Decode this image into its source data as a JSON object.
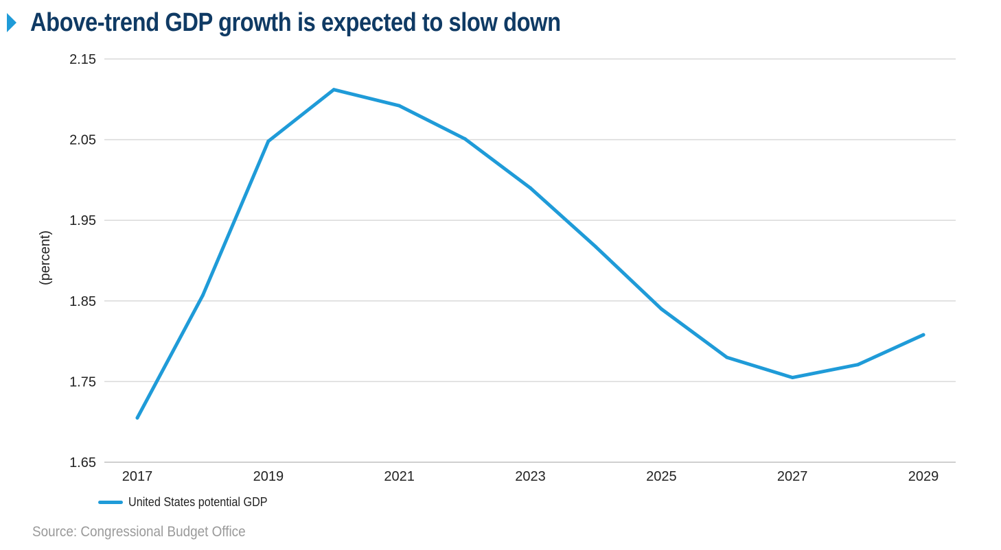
{
  "title": "Above-trend GDP growth is expected to slow down",
  "source": "Source: Congressional Budget Office",
  "colors": {
    "title": "#0f3a64",
    "accent": "#1f9bd8",
    "series": "#1f9bd8",
    "grid": "#d9d9d9",
    "source": "#9a9a9a"
  },
  "chart_data": {
    "type": "line",
    "title": "Above-trend GDP growth is expected to slow down",
    "xlabel": "",
    "ylabel": "(percent)",
    "ylim": [
      1.65,
      2.15
    ],
    "yticks": [
      "1.65",
      "1.75",
      "1.85",
      "1.95",
      "2.05",
      "2.15"
    ],
    "xtick_labels": [
      "2017",
      "2019",
      "2021",
      "2023",
      "2025",
      "2027",
      "2029"
    ],
    "grid": true,
    "legend_position": "bottom-left",
    "x": [
      2017,
      2018,
      2019,
      2020,
      2021,
      2022,
      2023,
      2024,
      2025,
      2026,
      2027,
      2028,
      2029
    ],
    "series": [
      {
        "name": "United States potential GDP",
        "values": [
          1.705,
          1.857,
          2.048,
          2.112,
          2.092,
          2.051,
          1.99,
          1.917,
          1.84,
          1.78,
          1.755,
          1.771,
          1.808
        ]
      }
    ]
  }
}
